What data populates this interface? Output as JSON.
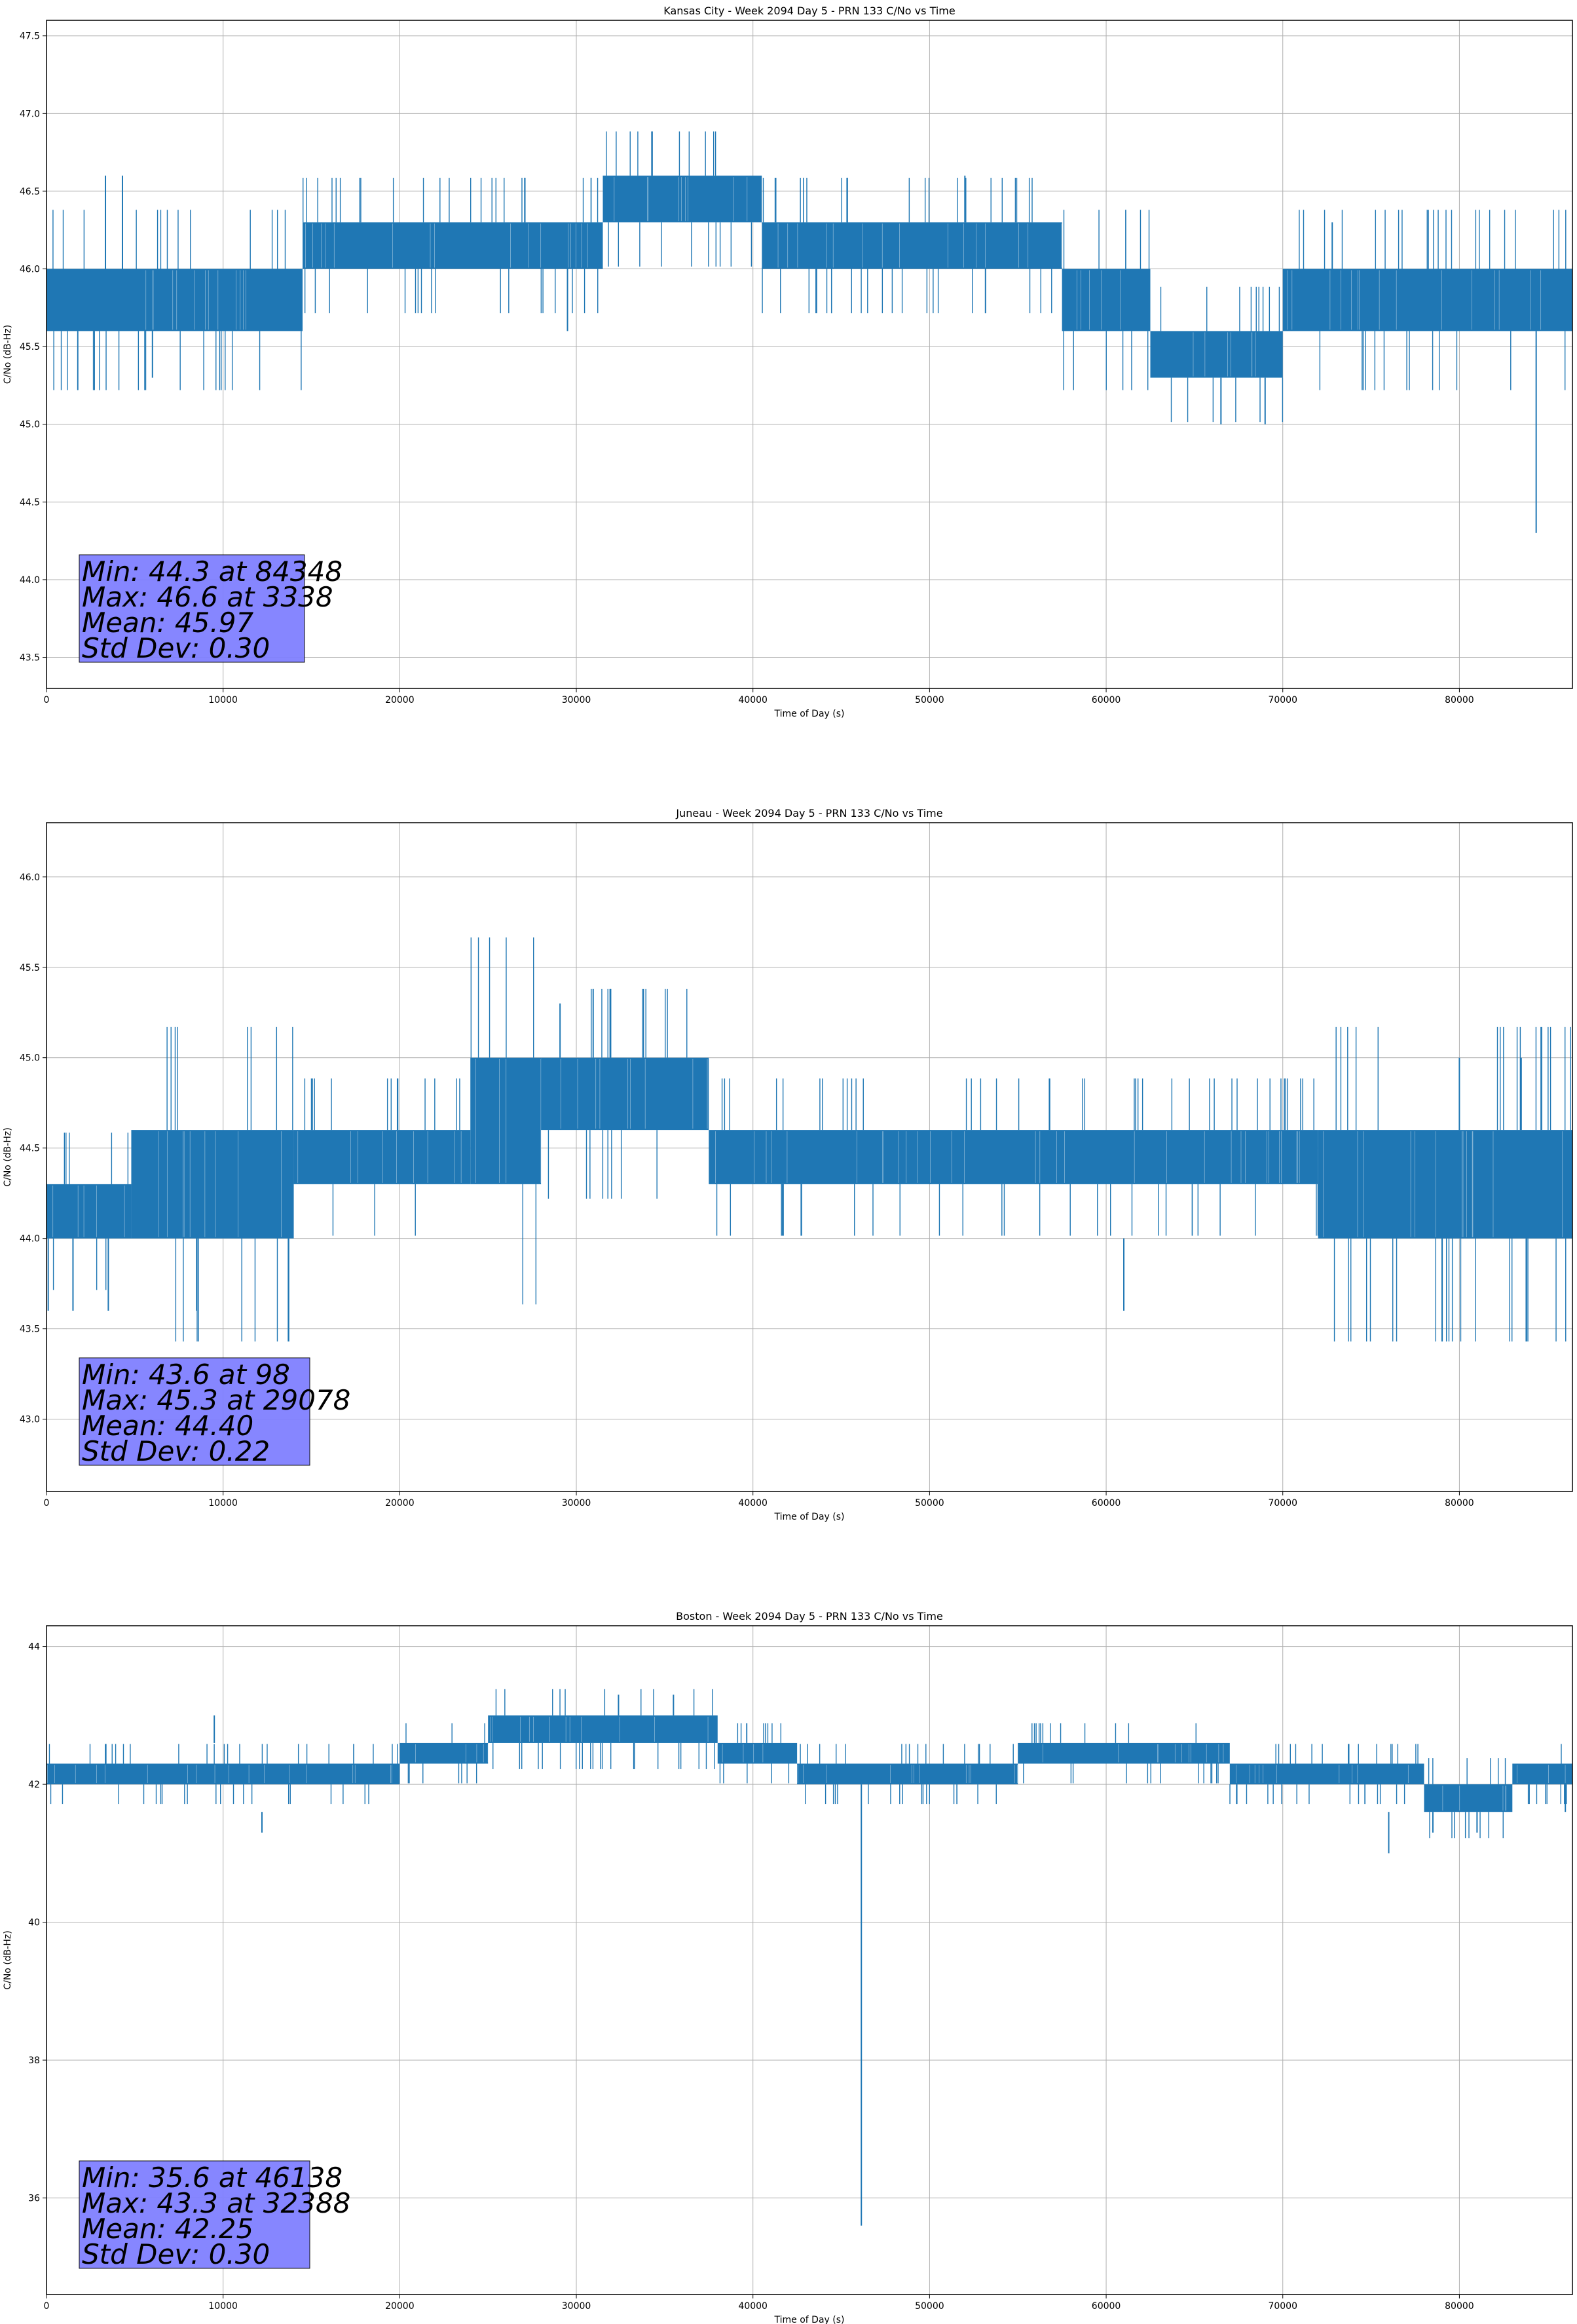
{
  "chart_data": [
    {
      "type": "line",
      "title": "Kansas City - Week 2094 Day 5 - PRN 133 C/No vs Time",
      "xlabel": "Time of Day (s)",
      "ylabel": "C/No (dB-Hz)",
      "xlim": [
        0,
        86400
      ],
      "ylim": [
        43.3,
        47.6
      ],
      "xticks": [
        0,
        10000,
        20000,
        30000,
        40000,
        50000,
        60000,
        70000,
        80000
      ],
      "yticks": [
        43.5,
        44.0,
        44.5,
        45.0,
        45.5,
        46.0,
        46.5,
        47.0,
        47.5
      ],
      "ytick_decimals": 1,
      "grid": true,
      "series_color": "#1f77b4",
      "stats_box_color": "#8080ff",
      "stats": [
        "Min: 44.3 at 84348",
        "Max: 46.6 at 3338",
        "Mean: 45.97",
        "Std Dev: 0.30"
      ],
      "bands": [
        {
          "x": [
            0,
            14500
          ],
          "low": 45.6,
          "high": 46.0
        },
        {
          "x": [
            14500,
            31500
          ],
          "low": 46.0,
          "high": 46.3
        },
        {
          "x": [
            31500,
            40500
          ],
          "low": 46.3,
          "high": 46.6
        },
        {
          "x": [
            40500,
            57500
          ],
          "low": 46.0,
          "high": 46.3
        },
        {
          "x": [
            57500,
            62500
          ],
          "low": 45.6,
          "high": 46.0
        },
        {
          "x": [
            62500,
            70000
          ],
          "low": 45.3,
          "high": 45.6
        },
        {
          "x": [
            70000,
            86400
          ],
          "low": 45.6,
          "high": 46.0
        }
      ],
      "spikes": [
        {
          "x": 3338,
          "low": 46.0,
          "high": 46.6
        },
        {
          "x": 4300,
          "low": 46.0,
          "high": 46.6
        },
        {
          "x": 6000,
          "low": 45.3,
          "high": 45.6
        },
        {
          "x": 29500,
          "low": 45.6,
          "high": 46.0
        },
        {
          "x": 52000,
          "low": 46.3,
          "high": 46.6
        },
        {
          "x": 66500,
          "low": 45.0,
          "high": 45.3
        },
        {
          "x": 69000,
          "low": 45.0,
          "high": 45.3
        },
        {
          "x": 72800,
          "low": 46.0,
          "high": 46.3
        },
        {
          "x": 84348,
          "low": 44.3,
          "high": 45.6
        }
      ]
    },
    {
      "type": "line",
      "title": "Juneau - Week 2094 Day 5 - PRN 133 C/No vs Time",
      "xlabel": "Time of Day (s)",
      "ylabel": "C/No (dB-Hz)",
      "xlim": [
        0,
        86400
      ],
      "ylim": [
        42.6,
        46.3
      ],
      "xticks": [
        0,
        10000,
        20000,
        30000,
        40000,
        50000,
        60000,
        70000,
        80000
      ],
      "yticks": [
        43.0,
        43.5,
        44.0,
        44.5,
        45.0,
        45.5,
        46.0
      ],
      "ytick_decimals": 1,
      "grid": true,
      "series_color": "#1f77b4",
      "stats_box_color": "#8080ff",
      "stats": [
        "Min: 43.6 at 98",
        "Max: 45.3 at 29078",
        "Mean: 44.40",
        "Std Dev: 0.22"
      ],
      "bands": [
        {
          "x": [
            0,
            4800
          ],
          "low": 44.0,
          "high": 44.3
        },
        {
          "x": [
            4800,
            14000
          ],
          "low": 44.0,
          "high": 44.6
        },
        {
          "x": [
            14000,
            24000
          ],
          "low": 44.3,
          "high": 44.6
        },
        {
          "x": [
            24000,
            28000
          ],
          "low": 44.3,
          "high": 45.0
        },
        {
          "x": [
            28000,
            37500
          ],
          "low": 44.6,
          "high": 45.0
        },
        {
          "x": [
            37500,
            72000
          ],
          "low": 44.3,
          "high": 44.6
        },
        {
          "x": [
            72000,
            86400
          ],
          "low": 44.0,
          "high": 44.6
        }
      ],
      "spikes": [
        {
          "x": 98,
          "low": 43.6,
          "high": 44.0
        },
        {
          "x": 1500,
          "low": 43.6,
          "high": 44.0
        },
        {
          "x": 3500,
          "low": 43.6,
          "high": 44.0
        },
        {
          "x": 8500,
          "low": 43.6,
          "high": 44.0
        },
        {
          "x": 29078,
          "low": 45.0,
          "high": 45.3
        },
        {
          "x": 61000,
          "low": 43.6,
          "high": 44.0
        },
        {
          "x": 80000,
          "low": 44.6,
          "high": 45.0
        },
        {
          "x": 83500,
          "low": 44.6,
          "high": 45.0
        }
      ]
    },
    {
      "type": "line",
      "title": "Boston - Week 2094 Day 5 - PRN 133 C/No vs Time",
      "xlabel": "Time of Day (s)",
      "ylabel": "C/No (dB-Hz)",
      "xlim": [
        0,
        86400
      ],
      "ylim": [
        34.6,
        44.3
      ],
      "xticks": [
        0,
        10000,
        20000,
        30000,
        40000,
        50000,
        60000,
        70000,
        80000
      ],
      "yticks": [
        36,
        38,
        40,
        42,
        44
      ],
      "ytick_decimals": 0,
      "grid": true,
      "series_color": "#1f77b4",
      "stats_box_color": "#8080ff",
      "stats": [
        "Min: 35.6 at 46138",
        "Max: 43.3 at 32388",
        "Mean: 42.25",
        "Std Dev: 0.30"
      ],
      "bands": [
        {
          "x": [
            0,
            20000
          ],
          "low": 42.0,
          "high": 42.3
        },
        {
          "x": [
            20000,
            25000
          ],
          "low": 42.3,
          "high": 42.6
        },
        {
          "x": [
            25000,
            38000
          ],
          "low": 42.6,
          "high": 43.0
        },
        {
          "x": [
            38000,
            42500
          ],
          "low": 42.3,
          "high": 42.6
        },
        {
          "x": [
            42500,
            55000
          ],
          "low": 42.0,
          "high": 42.3
        },
        {
          "x": [
            55000,
            67000
          ],
          "low": 42.3,
          "high": 42.6
        },
        {
          "x": [
            67000,
            78000
          ],
          "low": 42.0,
          "high": 42.3
        },
        {
          "x": [
            78000,
            83000
          ],
          "low": 41.6,
          "high": 42.0
        },
        {
          "x": [
            83000,
            86400
          ],
          "low": 42.0,
          "high": 42.3
        }
      ],
      "spikes": [
        {
          "x": 9500,
          "low": 42.6,
          "high": 43.0
        },
        {
          "x": 12200,
          "low": 41.3,
          "high": 41.6
        },
        {
          "x": 32388,
          "low": 43.0,
          "high": 43.3
        },
        {
          "x": 35500,
          "low": 43.0,
          "high": 43.3
        },
        {
          "x": 46138,
          "low": 35.6,
          "high": 42.0
        },
        {
          "x": 76000,
          "low": 41.0,
          "high": 41.6
        },
        {
          "x": 78500,
          "low": 41.3,
          "high": 41.6
        },
        {
          "x": 81000,
          "low": 41.3,
          "high": 41.6
        },
        {
          "x": 86000,
          "low": 41.6,
          "high": 42.0
        }
      ]
    }
  ]
}
